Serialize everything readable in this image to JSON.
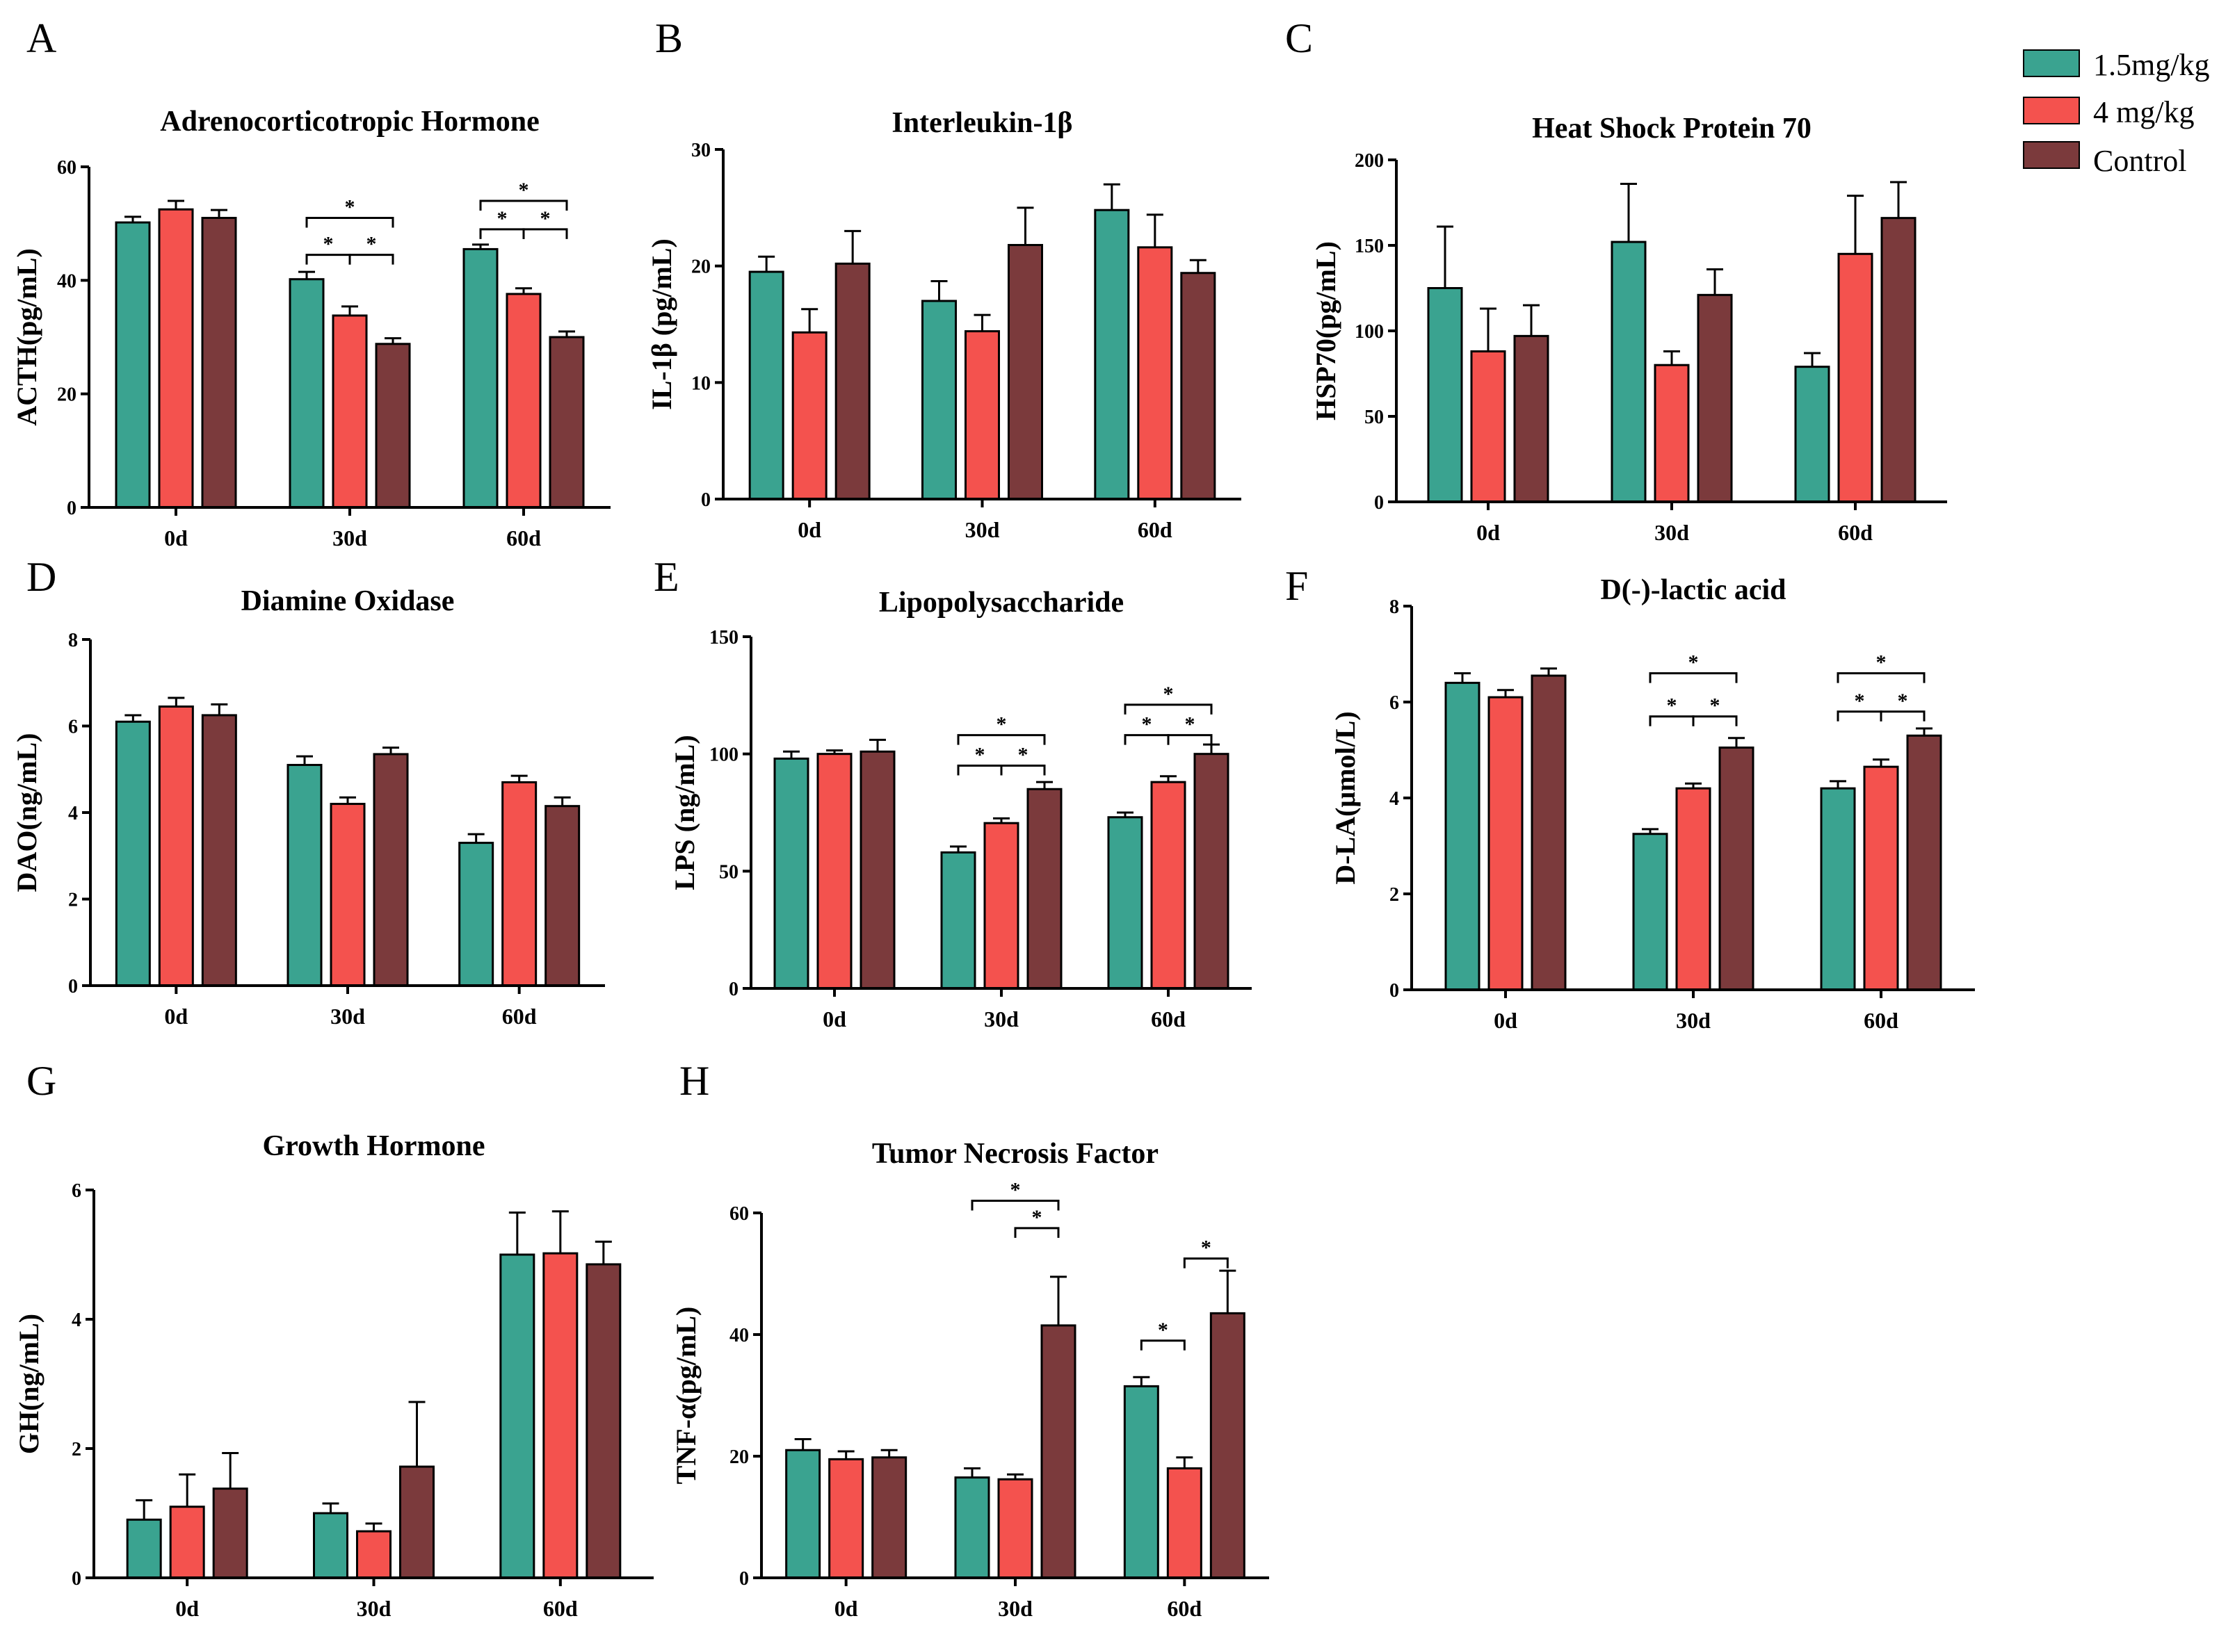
{
  "legend": [
    {
      "label": "1.5mg/kg",
      "color": "#3aa390"
    },
    {
      "label": "4 mg/kg",
      "color": "#f4524e"
    },
    {
      "label": "Control",
      "color": "#7b3a3c"
    }
  ],
  "chart_data": [
    {
      "panel": "A",
      "type": "bar",
      "title": "Adrenocorticotropic Hormone",
      "ylabel": "ACTH(pg/mL)",
      "categories": [
        "0d",
        "30d",
        "60d"
      ],
      "ylim": [
        0,
        60
      ],
      "yticks": [
        0,
        20,
        40,
        60
      ],
      "series": [
        {
          "name": "1.5mg/kg",
          "values": [
            50.2,
            40.2,
            45.5
          ],
          "errors": [
            1.0,
            1.3,
            0.8
          ]
        },
        {
          "name": "4 mg/kg",
          "values": [
            52.5,
            33.8,
            37.6
          ],
          "errors": [
            1.5,
            1.6,
            1.0
          ]
        },
        {
          "name": "Control",
          "values": [
            51.0,
            28.8,
            30.0
          ],
          "errors": [
            1.4,
            1.0,
            1.0
          ]
        }
      ],
      "significance": [
        {
          "category": "30d",
          "from": 0,
          "to": 2,
          "y": 51,
          "label": "*"
        },
        {
          "category": "30d",
          "from": 0,
          "to": 1,
          "y": 44.5,
          "label": "*"
        },
        {
          "category": "30d",
          "from": 1,
          "to": 2,
          "y": 44.5,
          "label": "*"
        },
        {
          "category": "60d",
          "from": 0,
          "to": 2,
          "y": 54,
          "label": "*"
        },
        {
          "category": "60d",
          "from": 0,
          "to": 1,
          "y": 49,
          "label": "*"
        },
        {
          "category": "60d",
          "from": 1,
          "to": 2,
          "y": 49,
          "label": "*"
        }
      ]
    },
    {
      "panel": "B",
      "type": "bar",
      "title": "Interleukin-1β",
      "ylabel": "IL-1β (pg/mL)",
      "categories": [
        "0d",
        "30d",
        "60d"
      ],
      "ylim": [
        0,
        30
      ],
      "yticks": [
        0,
        10,
        20,
        30
      ],
      "series": [
        {
          "name": "1.5mg/kg",
          "values": [
            19.5,
            17.0,
            24.8
          ],
          "errors": [
            1.3,
            1.7,
            2.2
          ]
        },
        {
          "name": "4 mg/kg",
          "values": [
            14.3,
            14.4,
            21.6
          ],
          "errors": [
            2.0,
            1.4,
            2.8
          ]
        },
        {
          "name": "Control",
          "values": [
            20.2,
            21.8,
            19.4
          ],
          "errors": [
            2.8,
            3.2,
            1.1
          ]
        }
      ],
      "significance": []
    },
    {
      "panel": "C",
      "type": "bar",
      "title": "Heat Shock Protein 70",
      "ylabel": "HSP70(pg/mL)",
      "categories": [
        "0d",
        "30d",
        "60d"
      ],
      "ylim": [
        0,
        200
      ],
      "yticks": [
        0,
        50,
        100,
        150,
        200
      ],
      "series": [
        {
          "name": "1.5mg/kg",
          "values": [
            125,
            152,
            79
          ],
          "errors": [
            36,
            34,
            8
          ]
        },
        {
          "name": "4 mg/kg",
          "values": [
            88,
            80,
            145
          ],
          "errors": [
            25,
            8,
            34
          ]
        },
        {
          "name": "Control",
          "values": [
            97,
            121,
            166
          ],
          "errors": [
            18,
            15,
            21
          ]
        }
      ],
      "significance": []
    },
    {
      "panel": "D",
      "type": "bar",
      "title": "Diamine Oxidase",
      "ylabel": "DAO(ng/mL)",
      "categories": [
        "0d",
        "30d",
        "60d"
      ],
      "ylim": [
        0,
        8
      ],
      "yticks": [
        0,
        2,
        4,
        6,
        8
      ],
      "series": [
        {
          "name": "1.5mg/kg",
          "values": [
            6.1,
            5.1,
            3.3
          ],
          "errors": [
            0.15,
            0.2,
            0.2
          ]
        },
        {
          "name": "4 mg/kg",
          "values": [
            6.45,
            4.2,
            4.7
          ],
          "errors": [
            0.2,
            0.15,
            0.15
          ]
        },
        {
          "name": "Control",
          "values": [
            6.25,
            5.35,
            4.15
          ],
          "errors": [
            0.25,
            0.15,
            0.2
          ]
        }
      ],
      "significance": []
    },
    {
      "panel": "E",
      "type": "bar",
      "title": "Lipopolysaccharide",
      "ylabel": "LPS (ng/mL)",
      "categories": [
        "0d",
        "30d",
        "60d"
      ],
      "ylim": [
        0,
        150
      ],
      "yticks": [
        0,
        50,
        100,
        150
      ],
      "series": [
        {
          "name": "1.5mg/kg",
          "values": [
            98,
            58,
            73
          ],
          "errors": [
            3,
            2.5,
            2
          ]
        },
        {
          "name": "4 mg/kg",
          "values": [
            100,
            70.5,
            88
          ],
          "errors": [
            1.5,
            2,
            2.5
          ]
        },
        {
          "name": "Control",
          "values": [
            101,
            85,
            100
          ],
          "errors": [
            5,
            3,
            4
          ]
        }
      ],
      "significance": [
        {
          "category": "30d",
          "from": 0,
          "to": 2,
          "y": 108,
          "label": "*"
        },
        {
          "category": "30d",
          "from": 0,
          "to": 1,
          "y": 95,
          "label": "*"
        },
        {
          "category": "30d",
          "from": 1,
          "to": 2,
          "y": 95,
          "label": "*"
        },
        {
          "category": "60d",
          "from": 0,
          "to": 2,
          "y": 121,
          "label": "*"
        },
        {
          "category": "60d",
          "from": 0,
          "to": 1,
          "y": 108,
          "label": "*"
        },
        {
          "category": "60d",
          "from": 1,
          "to": 2,
          "y": 108,
          "label": "*"
        }
      ]
    },
    {
      "panel": "F",
      "type": "bar",
      "title": "D(-)-lactic acid",
      "ylabel": "D-LA(μmol/L)",
      "categories": [
        "0d",
        "30d",
        "60d"
      ],
      "ylim": [
        0,
        8
      ],
      "yticks": [
        0,
        2,
        4,
        6,
        8
      ],
      "series": [
        {
          "name": "1.5mg/kg",
          "values": [
            6.4,
            3.25,
            4.2
          ],
          "errors": [
            0.2,
            0.1,
            0.15
          ]
        },
        {
          "name": "4 mg/kg",
          "values": [
            6.1,
            4.2,
            4.65
          ],
          "errors": [
            0.15,
            0.1,
            0.15
          ]
        },
        {
          "name": "Control",
          "values": [
            6.55,
            5.05,
            5.3
          ],
          "errors": [
            0.15,
            0.2,
            0.15
          ]
        }
      ],
      "significance": [
        {
          "category": "30d",
          "from": 0,
          "to": 2,
          "y": 6.6,
          "label": "*"
        },
        {
          "category": "30d",
          "from": 0,
          "to": 1,
          "y": 5.7,
          "label": "*"
        },
        {
          "category": "30d",
          "from": 1,
          "to": 2,
          "y": 5.7,
          "label": "*"
        },
        {
          "category": "60d",
          "from": 0,
          "to": 2,
          "y": 6.6,
          "label": "*"
        },
        {
          "category": "60d",
          "from": 0,
          "to": 1,
          "y": 5.8,
          "label": "*"
        },
        {
          "category": "60d",
          "from": 1,
          "to": 2,
          "y": 5.8,
          "label": "*"
        }
      ]
    },
    {
      "panel": "G",
      "type": "bar",
      "title": "Growth Hormone",
      "ylabel": "GH(ng/mL)",
      "categories": [
        "0d",
        "30d",
        "60d"
      ],
      "ylim": [
        0,
        6
      ],
      "yticks": [
        0,
        2,
        4,
        6
      ],
      "series": [
        {
          "name": "1.5mg/kg",
          "values": [
            0.9,
            1.0,
            5.0
          ],
          "errors": [
            0.3,
            0.15,
            0.65
          ]
        },
        {
          "name": "4 mg/kg",
          "values": [
            1.1,
            0.72,
            5.02
          ],
          "errors": [
            0.5,
            0.12,
            0.65
          ]
        },
        {
          "name": "Control",
          "values": [
            1.38,
            1.72,
            4.85
          ],
          "errors": [
            0.55,
            1.0,
            0.35
          ]
        }
      ],
      "significance": []
    },
    {
      "panel": "H",
      "type": "bar",
      "title": "Tumor Necrosis Factor",
      "ylabel": "TNF-α(pg/mL)",
      "categories": [
        "0d",
        "30d",
        "60d"
      ],
      "ylim": [
        0,
        60
      ],
      "yticks": [
        0,
        20,
        40,
        60
      ],
      "series": [
        {
          "name": "1.5mg/kg",
          "values": [
            21,
            16.5,
            31.5
          ],
          "errors": [
            1.8,
            1.5,
            1.5
          ]
        },
        {
          "name": "4 mg/kg",
          "values": [
            19.5,
            16.2,
            18
          ],
          "errors": [
            1.3,
            0.8,
            1.8
          ]
        },
        {
          "name": "Control",
          "values": [
            19.8,
            41.5,
            43.5
          ],
          "errors": [
            1.2,
            8,
            7
          ]
        }
      ],
      "significance": [
        {
          "category": "30d",
          "from": 0,
          "to": 2,
          "y": 62,
          "label": "*"
        },
        {
          "category": "30d",
          "from": 1,
          "to": 2,
          "y": 57.5,
          "label": "*"
        },
        {
          "category": "60d",
          "from": 0,
          "to": 1,
          "y": 39,
          "label": "*"
        },
        {
          "category": "60d",
          "from": 1,
          "to": 2,
          "y": 52.5,
          "label": "*"
        }
      ]
    }
  ]
}
